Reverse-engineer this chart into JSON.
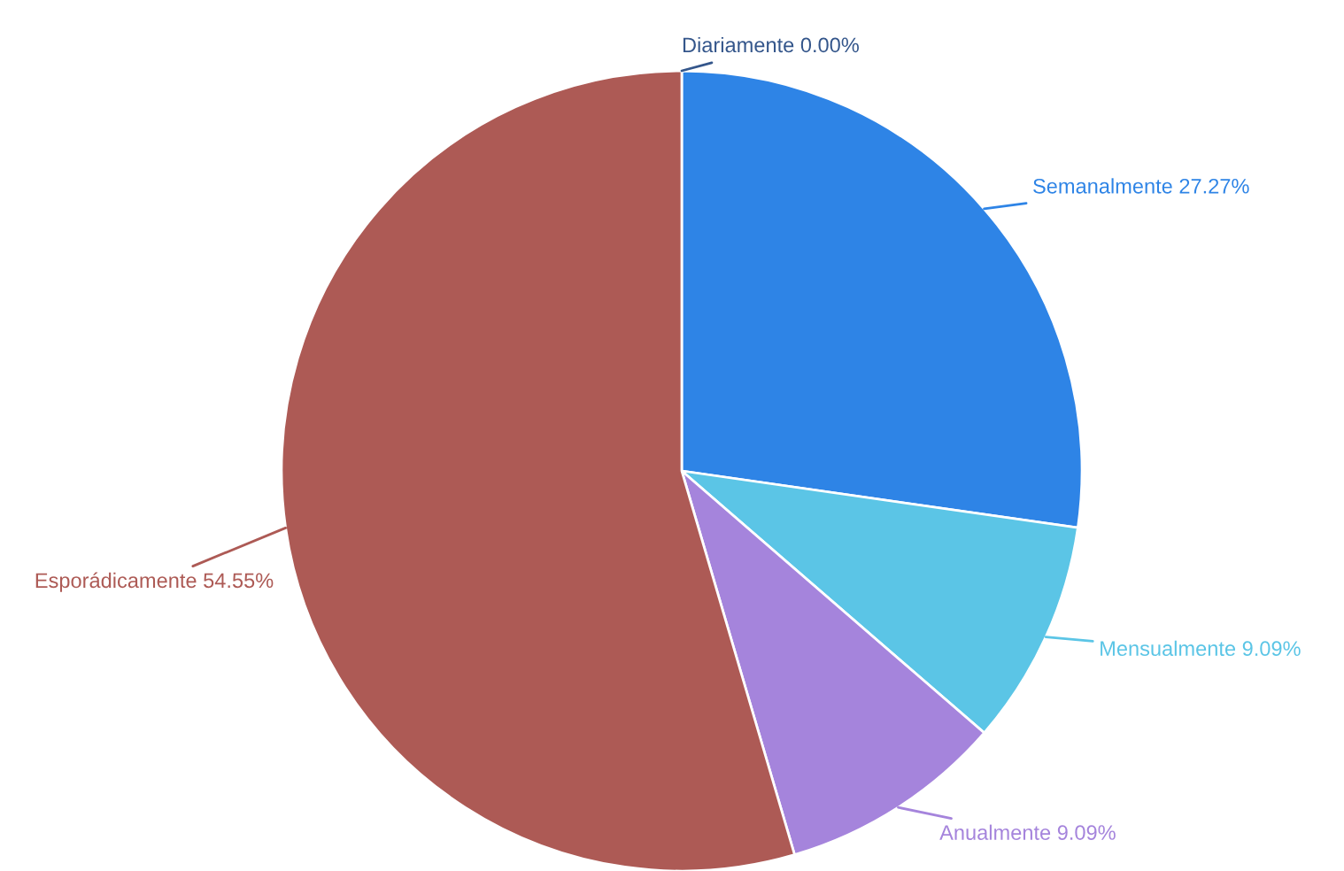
{
  "chart_data": {
    "type": "pie",
    "categories": [
      "Diariamente",
      "Semanalmente",
      "Mensualmente",
      "Anualmente",
      "Esporádicamente"
    ],
    "values": [
      0.0,
      27.27,
      9.09,
      9.09,
      54.55
    ],
    "value_labels": [
      "0.00%",
      "27.27%",
      "9.09%",
      "9.09%",
      "54.55%"
    ],
    "colors": [
      "#34568b",
      "#2e84e6",
      "#5bc5e6",
      "#a584dc",
      "#ad5a55"
    ],
    "legend": false
  }
}
